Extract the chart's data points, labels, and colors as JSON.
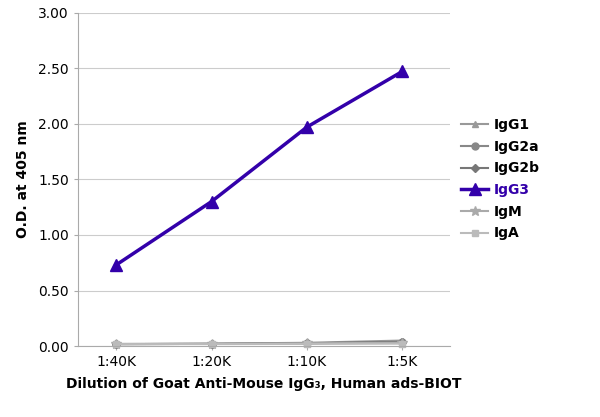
{
  "x_labels": [
    "1:40K",
    "1:20K",
    "1:10K",
    "1:5K"
  ],
  "x_values": [
    1,
    2,
    3,
    4
  ],
  "series": [
    {
      "name": "IgG1",
      "values": [
        0.02,
        0.022,
        0.03,
        0.05
      ],
      "color": "#999999",
      "marker": "^",
      "linewidth": 1.5,
      "markersize": 5,
      "zorder": 2,
      "markerfacecolor": "#999999"
    },
    {
      "name": "IgG2a",
      "values": [
        0.018,
        0.02,
        0.025,
        0.038
      ],
      "color": "#888888",
      "marker": "o",
      "linewidth": 1.5,
      "markersize": 5,
      "zorder": 2,
      "markerfacecolor": "#888888"
    },
    {
      "name": "IgG2b",
      "values": [
        0.018,
        0.02,
        0.025,
        0.038
      ],
      "color": "#777777",
      "marker": "D",
      "linewidth": 1.5,
      "markersize": 4,
      "zorder": 2,
      "markerfacecolor": "#777777"
    },
    {
      "name": "IgG3",
      "values": [
        0.73,
        1.3,
        1.97,
        2.47
      ],
      "color": "#3300AA",
      "marker": "^",
      "linewidth": 2.5,
      "markersize": 8,
      "zorder": 3,
      "markerfacecolor": "#3300AA"
    },
    {
      "name": "IgM",
      "values": [
        0.018,
        0.02,
        0.025,
        0.03
      ],
      "color": "#aaaaaa",
      "marker": "*",
      "linewidth": 1.5,
      "markersize": 7,
      "zorder": 2,
      "markerfacecolor": "#aaaaaa"
    },
    {
      "name": "IgA",
      "values": [
        0.018,
        0.018,
        0.02,
        0.022
      ],
      "color": "#bbbbbb",
      "marker": "s",
      "linewidth": 1.5,
      "markersize": 4,
      "zorder": 2,
      "markerfacecolor": "#bbbbbb"
    }
  ],
  "ylim": [
    0.0,
    3.0
  ],
  "yticks": [
    0.0,
    0.5,
    1.0,
    1.5,
    2.0,
    2.5,
    3.0
  ],
  "ylabel": "O.D. at 405 nm",
  "xlabel": "Dilution of Goat Anti-Mouse IgG₃, Human ads-BIOT",
  "background_color": "#ffffff",
  "grid_color": "#cccccc",
  "legend_fontsize": 10,
  "axis_label_fontsize": 10,
  "tick_fontsize": 10
}
